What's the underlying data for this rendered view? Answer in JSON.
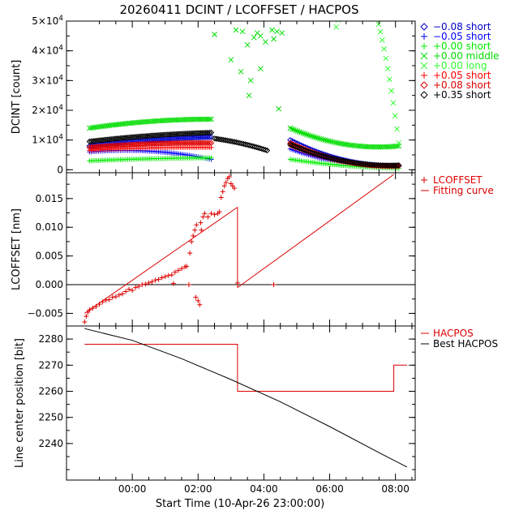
{
  "title": "20260411 DCINT / LCOFFSET / HACPOS",
  "x_axis": {
    "label": "Start Time (10-Apr-26 23:00:00)",
    "unit": "hours after start time",
    "range": [
      -1,
      9.6
    ],
    "ticks": [
      1,
      3,
      5,
      7,
      9
    ],
    "tick_labels": [
      "00:00",
      "02:00",
      "04:00",
      "06:00",
      "08:00"
    ]
  },
  "chart_data": [
    {
      "type": "scatter",
      "panel": "DCINT",
      "ylabel": "DCINT [count]",
      "ylim": [
        -1000,
        50000
      ],
      "yticks": [
        0,
        10000,
        20000,
        30000,
        40000,
        50000
      ],
      "ytick_labels": [
        {
          "base": "0",
          "exp": ""
        },
        {
          "base": "1×10",
          "exp": "4"
        },
        {
          "base": "2×10",
          "exp": "4"
        },
        {
          "base": "3×10",
          "exp": "4"
        },
        {
          "base": "4×10",
          "exp": "4"
        },
        {
          "base": "5×10",
          "exp": "4"
        }
      ],
      "legend_position": "right",
      "series": [
        {
          "name": "−0.08 short",
          "color": "#0000cc",
          "symbol": "diamond",
          "segments": [
            {
              "x0": -0.3,
              "x1": 3.4,
              "y0": 8000,
              "y1": 11000,
              "curve": 0.15
            },
            {
              "x0": 5.8,
              "x1": 9.1,
              "y0": 10000,
              "y1": 1500,
              "curve": -0.3
            }
          ]
        },
        {
          "name": "−0.05 short",
          "color": "#0000ff",
          "symbol": "plus",
          "segments": [
            {
              "x0": -0.3,
              "x1": 3.4,
              "y0": 6000,
              "y1": 3500,
              "curve": 0.6
            },
            {
              "x0": 5.8,
              "x1": 9.1,
              "y0": 7000,
              "y1": 1000,
              "curve": -0.3
            }
          ]
        },
        {
          "name": "+0.00 short",
          "color": "#00ee00",
          "symbol": "plus",
          "segments": [
            {
              "x0": -0.3,
              "x1": 3.4,
              "y0": 3000,
              "y1": 4000,
              "curve": 0.2
            },
            {
              "x0": 5.8,
              "x1": 9.1,
              "y0": 3500,
              "y1": 500,
              "curve": -0.2
            }
          ]
        },
        {
          "name": "+0.00 middle",
          "color": "#00dd00",
          "symbol": "cross",
          "segments": [
            {
              "x0": -0.3,
              "x1": 3.4,
              "y0": 14000,
              "y1": 17000,
              "curve": 0.25
            },
            {
              "x0": 5.8,
              "x1": 9.1,
              "y0": 14000,
              "y1": 8000,
              "curve": -0.4
            }
          ],
          "points": [
            {
              "x": 3.5,
              "y": 45500
            },
            {
              "x": 4.0,
              "y": 37000
            },
            {
              "x": 4.15,
              "y": 47000
            },
            {
              "x": 4.35,
              "y": 46500
            },
            {
              "x": 4.5,
              "y": 42000
            },
            {
              "x": 4.6,
              "y": 30000
            },
            {
              "x": 4.7,
              "y": 44500
            },
            {
              "x": 4.8,
              "y": 46000
            },
            {
              "x": 4.9,
              "y": 45000
            },
            {
              "x": 5.05,
              "y": 43000
            },
            {
              "x": 5.25,
              "y": 47000
            },
            {
              "x": 5.4,
              "y": 46500
            },
            {
              "x": 5.55,
              "y": 46000
            },
            {
              "x": 4.3,
              "y": 33000
            },
            {
              "x": 4.55,
              "y": 25000
            },
            {
              "x": 5.3,
              "y": 44000
            },
            {
              "x": 4.9,
              "y": 34000
            },
            {
              "x": 5.45,
              "y": 20500
            }
          ]
        },
        {
          "name": "+0.00 long",
          "color": "#33ff33",
          "symbol": "cross",
          "segments": [
            {
              "x0": 7.2,
              "x1": 9.1,
              "y0": 48000,
              "y1": 9000,
              "curve": 0.8
            }
          ]
        },
        {
          "name": "+0.05 short",
          "color": "#ff0000",
          "symbol": "plus",
          "segments": [
            {
              "x0": -0.3,
              "x1": 3.4,
              "y0": 6500,
              "y1": 7500,
              "curve": 0.35
            },
            {
              "x0": 5.8,
              "x1": 9.1,
              "y0": 8000,
              "y1": 1200,
              "curve": -0.3
            }
          ]
        },
        {
          "name": "+0.08 short",
          "color": "#dd0000",
          "symbol": "diamond",
          "segments": [
            {
              "x0": -0.3,
              "x1": 3.4,
              "y0": 7500,
              "y1": 9000,
              "curve": 0.3
            },
            {
              "x0": 5.8,
              "x1": 9.1,
              "y0": 9000,
              "y1": 1300,
              "curve": -0.3
            }
          ]
        },
        {
          "name": "+0.35 short",
          "color": "#000000",
          "symbol": "diamond",
          "segments": [
            {
              "x0": -0.3,
              "x1": 3.4,
              "y0": 9500,
              "y1": 12500,
              "curve": 0.15
            },
            {
              "x0": 3.5,
              "x1": 5.1,
              "y0": 10500,
              "y1": 6500,
              "curve": 0.1
            },
            {
              "x0": 5.8,
              "x1": 9.1,
              "y0": 8500,
              "y1": 1500,
              "curve": -0.3
            }
          ]
        }
      ]
    },
    {
      "type": "scatter",
      "panel": "LCOFFSET",
      "ylabel": "LCOFFSET [nm]",
      "ylim": [
        -0.0072,
        0.0195
      ],
      "yticks": [
        -0.005,
        0.0,
        0.005,
        0.01,
        0.015
      ],
      "ytick_labels": [
        "−0.005",
        "0.000",
        "0.005",
        "0.010",
        "0.015"
      ],
      "zero_line": 0.0,
      "legend_position": "right",
      "series": [
        {
          "name": "LCOFFSET",
          "color": "#dd0000",
          "symbol": "plus",
          "points": [
            {
              "x": -0.45,
              "y": -0.0065
            },
            {
              "x": -0.4,
              "y": -0.0055
            },
            {
              "x": -0.35,
              "y": -0.0048
            },
            {
              "x": -0.3,
              "y": -0.0044
            },
            {
              "x": -0.2,
              "y": -0.0041
            },
            {
              "x": -0.1,
              "y": -0.0038
            },
            {
              "x": 0.0,
              "y": -0.0034
            },
            {
              "x": 0.1,
              "y": -0.003
            },
            {
              "x": 0.2,
              "y": -0.0027
            },
            {
              "x": 0.3,
              "y": -0.0026
            },
            {
              "x": 0.4,
              "y": -0.0022
            },
            {
              "x": 0.5,
              "y": -0.0021
            },
            {
              "x": 0.6,
              "y": -0.0018
            },
            {
              "x": 0.7,
              "y": -0.0016
            },
            {
              "x": 0.8,
              "y": -0.0012
            },
            {
              "x": 0.9,
              "y": -0.0008
            },
            {
              "x": 1.0,
              "y": -0.001
            },
            {
              "x": 1.1,
              "y": -0.0005
            },
            {
              "x": 1.2,
              "y": -0.0003
            },
            {
              "x": 1.3,
              "y": 0.0
            },
            {
              "x": 1.4,
              "y": 0.0001
            },
            {
              "x": 1.5,
              "y": 0.0003
            },
            {
              "x": 1.6,
              "y": 0.0005
            },
            {
              "x": 1.7,
              "y": 0.0008
            },
            {
              "x": 1.8,
              "y": 0.0009
            },
            {
              "x": 1.9,
              "y": 0.0012
            },
            {
              "x": 2.0,
              "y": 0.0014
            },
            {
              "x": 2.1,
              "y": 0.0016
            },
            {
              "x": 2.2,
              "y": 0.0017
            },
            {
              "x": 2.25,
              "y": 0.0002
            },
            {
              "x": 2.3,
              "y": 0.0022
            },
            {
              "x": 2.4,
              "y": 0.0025
            },
            {
              "x": 2.5,
              "y": 0.0028
            },
            {
              "x": 2.6,
              "y": 0.0031
            },
            {
              "x": 2.65,
              "y": 0.0032
            },
            {
              "x": 2.72,
              "y": 0.0
            },
            {
              "x": 2.75,
              "y": 0.0055
            },
            {
              "x": 2.8,
              "y": 0.0075
            },
            {
              "x": 2.85,
              "y": 0.0085
            },
            {
              "x": 2.9,
              "y": 0.0095
            },
            {
              "x": 2.93,
              "y": -0.0022
            },
            {
              "x": 2.95,
              "y": 0.0104
            },
            {
              "x": 3.0,
              "y": -0.0028
            },
            {
              "x": 3.05,
              "y": -0.0035
            },
            {
              "x": 3.08,
              "y": 0.0108
            },
            {
              "x": 3.1,
              "y": 0.0095
            },
            {
              "x": 3.15,
              "y": 0.0118
            },
            {
              "x": 3.2,
              "y": 0.0124
            },
            {
              "x": 3.3,
              "y": 0.0118
            },
            {
              "x": 3.4,
              "y": 0.0124
            },
            {
              "x": 3.5,
              "y": 0.0122
            },
            {
              "x": 3.6,
              "y": 0.0124
            },
            {
              "x": 3.65,
              "y": 0.0127
            },
            {
              "x": 3.7,
              "y": 0.0152
            },
            {
              "x": 3.75,
              "y": 0.0162
            },
            {
              "x": 3.8,
              "y": 0.0172
            },
            {
              "x": 3.85,
              "y": 0.0178
            },
            {
              "x": 3.9,
              "y": 0.0185
            },
            {
              "x": 3.95,
              "y": 0.0188
            },
            {
              "x": 4.0,
              "y": 0.0176
            },
            {
              "x": 4.05,
              "y": 0.0172
            },
            {
              "x": 4.1,
              "y": 0.0168
            },
            {
              "x": 4.2,
              "y": 0.0003
            },
            {
              "x": 5.3,
              "y": 0.0
            }
          ]
        },
        {
          "name": "Fitting curve",
          "color": "#dd0000",
          "symbol": "line",
          "lines": [
            {
              "x": [
                -0.45,
                4.2
              ],
              "y": [
                -0.005,
                0.0135
              ]
            },
            {
              "x": [
                4.2,
                4.2
              ],
              "y": [
                0.0135,
                -0.0005
              ]
            },
            {
              "x": [
                4.2,
                8.95
              ],
              "y": [
                -0.0005,
                0.0192
              ]
            }
          ]
        }
      ]
    },
    {
      "type": "line",
      "panel": "HACPOS",
      "ylabel": "Line center position [bit]",
      "ylim": [
        2226,
        2285
      ],
      "yticks": [
        2240,
        2250,
        2260,
        2270,
        2280
      ],
      "ytick_labels": [
        "2240",
        "2250",
        "2260",
        "2270",
        "2280"
      ],
      "legend_position": "right",
      "series": [
        {
          "name": "HACPOS",
          "color": "#dd0000",
          "x": [
            -0.45,
            4.2,
            4.2,
            8.95,
            8.95,
            9.35
          ],
          "y": [
            2278,
            2278,
            2260,
            2260,
            2270,
            2270
          ]
        },
        {
          "name": "Best HACPOS",
          "color": "#000000",
          "x": [
            -0.45,
            1.0,
            2.5,
            4.0,
            5.5,
            7.0,
            8.5,
            9.35
          ],
          "y": [
            2284,
            2279.5,
            2272.5,
            2264.5,
            2256,
            2246.5,
            2236.5,
            2231
          ]
        }
      ]
    }
  ]
}
